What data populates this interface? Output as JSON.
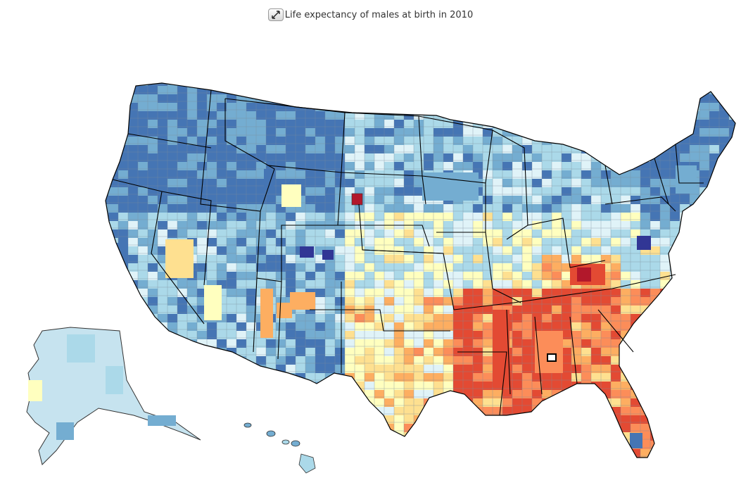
{
  "title": "Life expectancy of males at birth in 2010",
  "controls": {
    "expand_icon": "expand-arrows-icon"
  },
  "map": {
    "type": "choropleth",
    "region": "United States counties",
    "palette": {
      "very_low": "#b2182b",
      "low": "#e34a33",
      "below_average": "#fc8d59",
      "slightly_below": "#fdae61",
      "mid_low": "#fee090",
      "mid": "#ffffbf",
      "mid_high": "#e0f3f8",
      "above_average": "#abd9e9",
      "high": "#74add1",
      "very_high": "#4575b4",
      "highest": "#313695"
    },
    "state_border_color": "#000000",
    "county_border_color": "#555555"
  }
}
